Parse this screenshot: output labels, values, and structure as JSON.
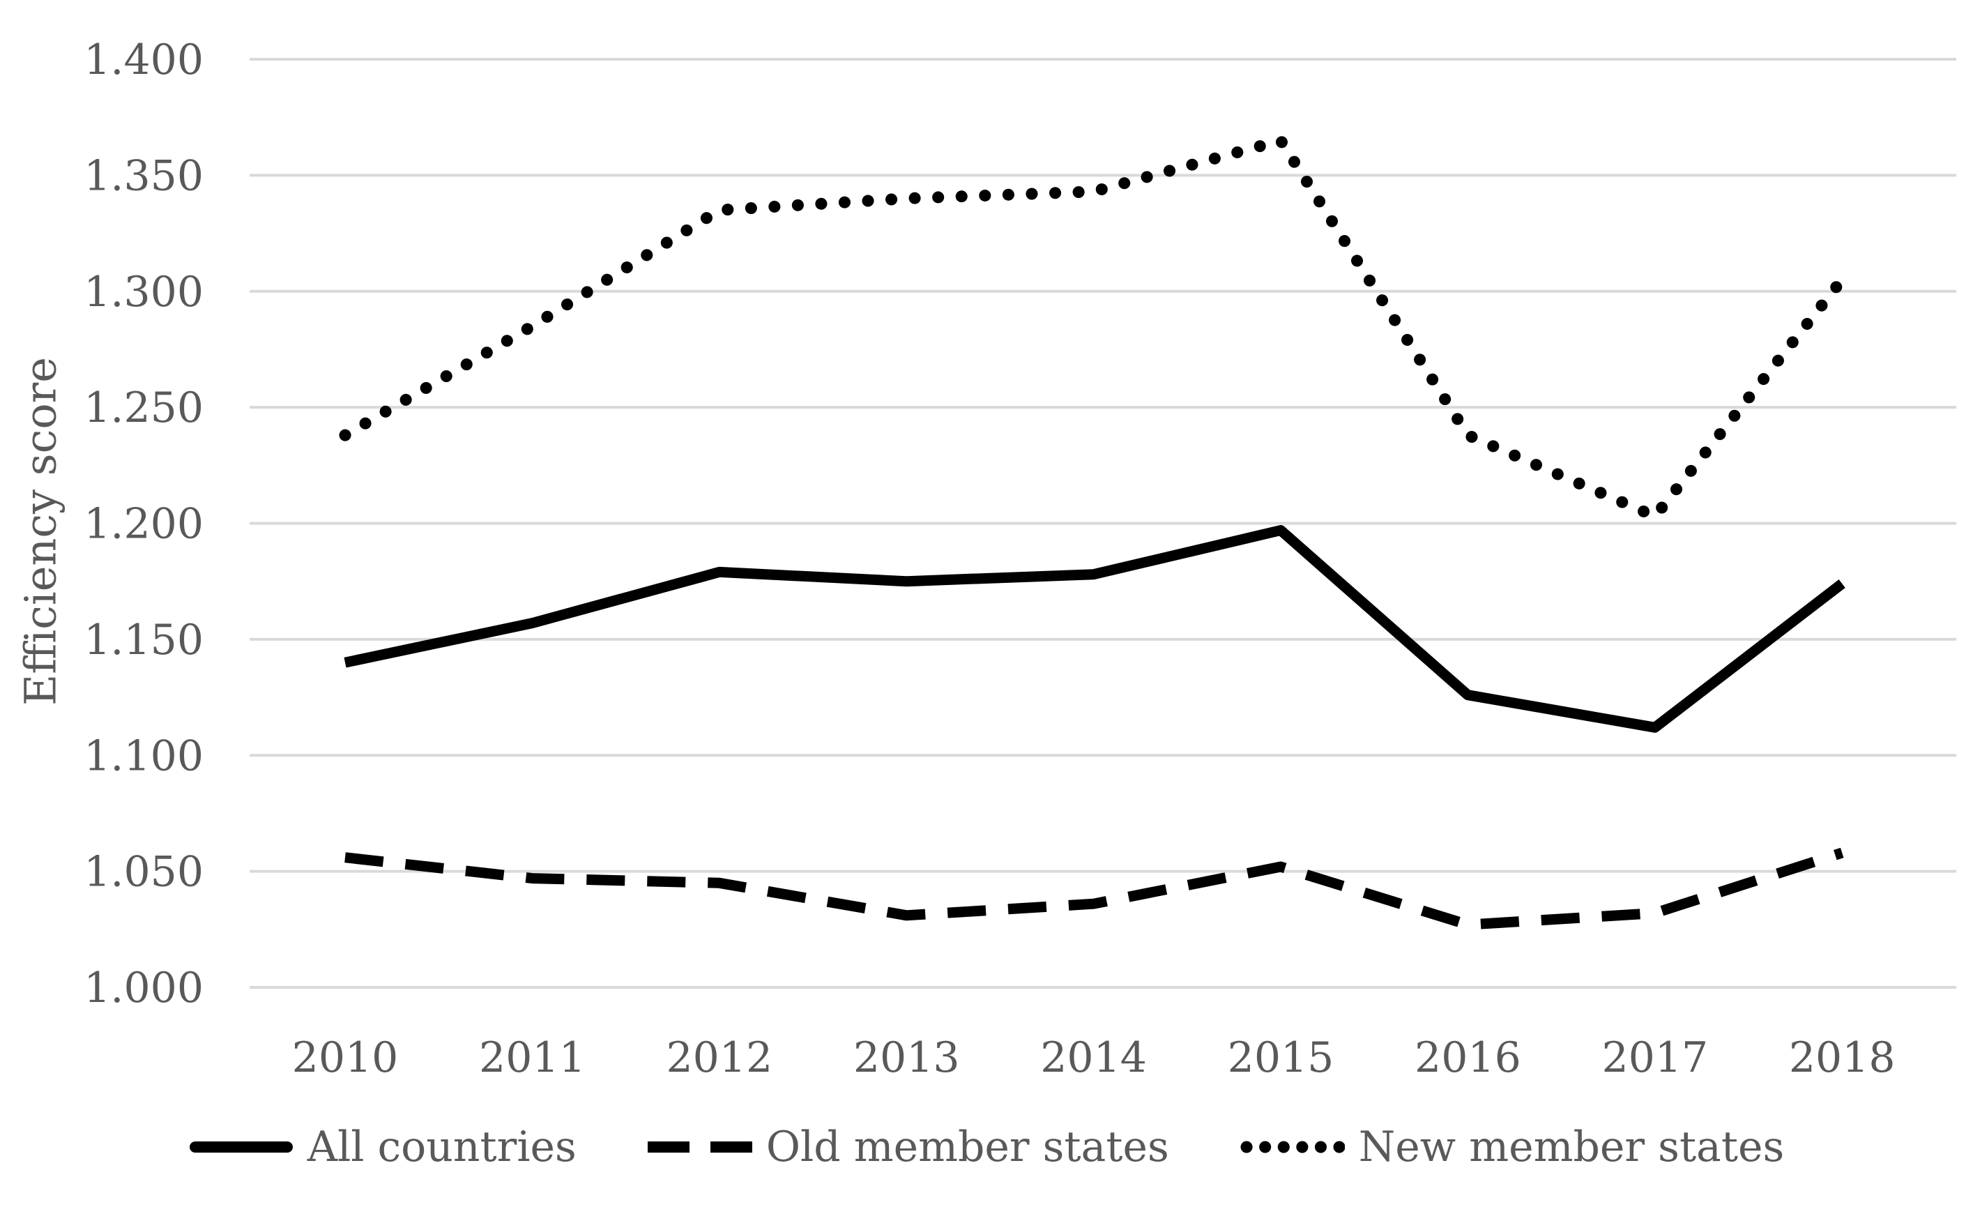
{
  "chart_data": {
    "type": "line",
    "title": "",
    "xlabel": "",
    "ylabel": "Efficiency score",
    "categories": [
      "2010",
      "2011",
      "2012",
      "2013",
      "2014",
      "2015",
      "2016",
      "2017",
      "2018"
    ],
    "ylim": [
      1.0,
      1.4
    ],
    "ytick_step": 0.05,
    "ytick_labels": [
      "1.400",
      "1.350",
      "1.300",
      "1.250",
      "1.200",
      "1.150",
      "1.100",
      "1.050",
      "1.000"
    ],
    "grid": true,
    "legend_position": "bottom",
    "series": [
      {
        "name": "All countries",
        "style": "solid",
        "values": [
          1.14,
          1.157,
          1.179,
          1.175,
          1.178,
          1.197,
          1.126,
          1.112,
          1.174
        ]
      },
      {
        "name": "Old member states",
        "style": "dashed",
        "values": [
          1.056,
          1.047,
          1.045,
          1.031,
          1.036,
          1.052,
          1.027,
          1.032,
          1.058
        ]
      },
      {
        "name": "New member states",
        "style": "dotted",
        "values": [
          1.238,
          1.285,
          1.335,
          1.34,
          1.343,
          1.365,
          1.238,
          1.203,
          1.305
        ]
      }
    ]
  },
  "colors": {
    "line": "#000000",
    "gridline": "#d9d9d9",
    "text": "#595959",
    "background": "#ffffff"
  }
}
